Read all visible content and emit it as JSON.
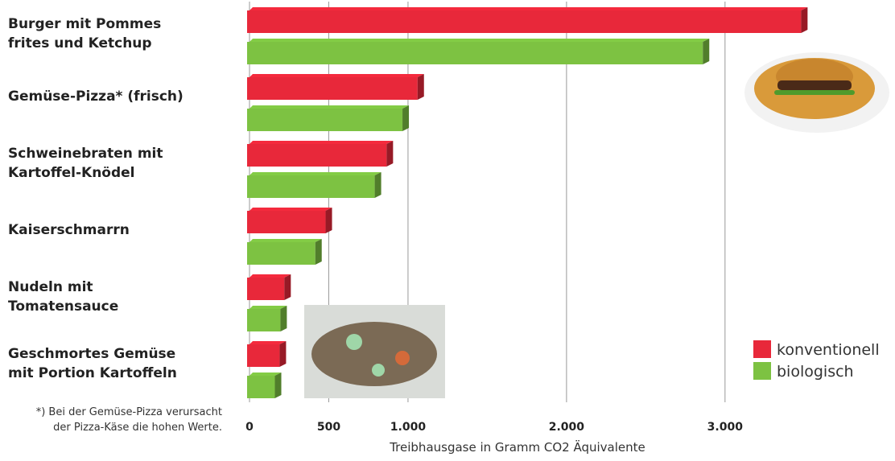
{
  "chart_data": {
    "type": "bar",
    "orientation": "horizontal",
    "categories": [
      "Burger mit Pommes\nfrites und Ketchup",
      "Gemüse-Pizza* (frisch)",
      "Schweinebraten mit\nKartoffel-Knödel",
      "Kaiserschmarrn",
      "Nudeln mit\nTomatensauce",
      "Geschmortes Gemüse\nmit Portion Kartoffeln"
    ],
    "series": [
      {
        "name": "konventionell",
        "color": "#e8283a",
        "values": [
          3480,
          1060,
          865,
          480,
          220,
          190
        ]
      },
      {
        "name": "biologisch",
        "color": "#7dc242",
        "values": [
          2860,
          965,
          790,
          415,
          195,
          160
        ]
      }
    ],
    "xlim": [
      0,
      3600
    ],
    "xticks": [
      0,
      500,
      {
        "value": 1000,
        "label": "1.000"
      },
      {
        "value": 2000,
        "label": "2.000"
      },
      {
        "value": 3000,
        "label": "3.000"
      }
    ],
    "xlabel": "Treibhausgase in Gramm CO2 Äquivalente",
    "note": "*) Bei der Gemüse-Pizza verursacht\nder Pizza-Käse die hohen Werte.",
    "grid": true,
    "legend": "lower right"
  }
}
